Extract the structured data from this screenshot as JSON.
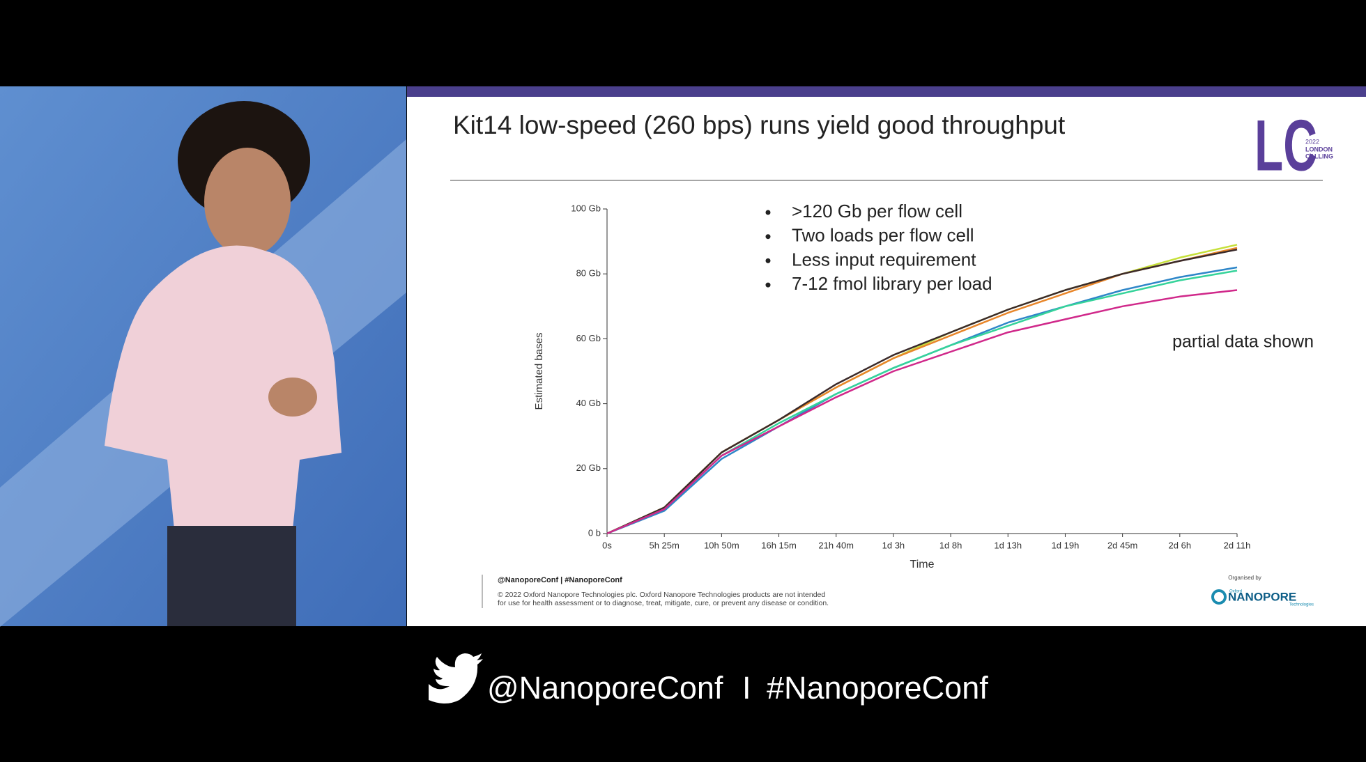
{
  "slide": {
    "title": "Kit14 low-speed (260 bps) runs yield good throughput",
    "bullets": [
      ">120 Gb per flow cell",
      "Two loads per flow cell",
      "Less input requirement",
      "7-12 fmol library per load"
    ],
    "note": "partial data shown",
    "logo": {
      "mark": "LC",
      "year": "2022",
      "line1": "LONDON",
      "line2": "CALLING"
    },
    "footer": {
      "handle": "@NanoporeConf | #NanoporeConf",
      "copyright": [
        "© 2022 Oxford Nanopore Technologies plc. Oxford Nanopore Technologies products are not intended",
        "for use for health assessment or to diagnose, treat, mitigate, cure, or prevent any disease or condition."
      ]
    },
    "organiser": {
      "label": "Organised by",
      "small": "Oxford",
      "name": "NANOPORE",
      "sub": "Technologies"
    }
  },
  "chart_data": {
    "type": "line",
    "x_label": "Time",
    "y_label": "Estimated bases",
    "categories": [
      "0s",
      "5h 25m",
      "10h 50m",
      "16h 15m",
      "21h 40m",
      "1d 3h",
      "1d 8h",
      "1d 13h",
      "1d 19h",
      "2d 45m",
      "2d 6h",
      "2d 11h"
    ],
    "ylim": [
      0,
      100
    ],
    "yticks": [
      {
        "value": 0,
        "label": "0 b"
      },
      {
        "value": 20,
        "label": "20 Gb"
      },
      {
        "value": 40,
        "label": "40 Gb"
      },
      {
        "value": 60,
        "label": "60 Gb"
      },
      {
        "value": 80,
        "label": "80 Gb"
      },
      {
        "value": 100,
        "label": "100 Gb"
      }
    ],
    "series": [
      {
        "color": "#c6e03a",
        "values": [
          0,
          8,
          25,
          35,
          45,
          54,
          62,
          69,
          75,
          80,
          85,
          89
        ]
      },
      {
        "color": "#e8862a",
        "values": [
          0,
          8,
          25,
          35,
          45,
          54,
          61,
          68,
          74,
          80,
          84,
          88
        ]
      },
      {
        "color": "#3a2a2a",
        "values": [
          0,
          8,
          25,
          35,
          46,
          55,
          62,
          69,
          75,
          80,
          84,
          87.5
        ]
      },
      {
        "color": "#2e86c8",
        "values": [
          0,
          7,
          23,
          33,
          43,
          51,
          58,
          65,
          70,
          75,
          79,
          82
        ]
      },
      {
        "color": "#35d39a",
        "values": [
          0,
          7.5,
          24,
          34,
          43,
          51,
          58,
          64,
          70,
          74,
          78,
          81
        ]
      },
      {
        "color": "#d0288a",
        "values": [
          0,
          7.5,
          24,
          33,
          42,
          50,
          56,
          62,
          66,
          70,
          73,
          75
        ]
      }
    ]
  },
  "banner": {
    "handle": "@NanoporeConf",
    "separator": "I",
    "hashtag": "#NanoporeConf"
  }
}
